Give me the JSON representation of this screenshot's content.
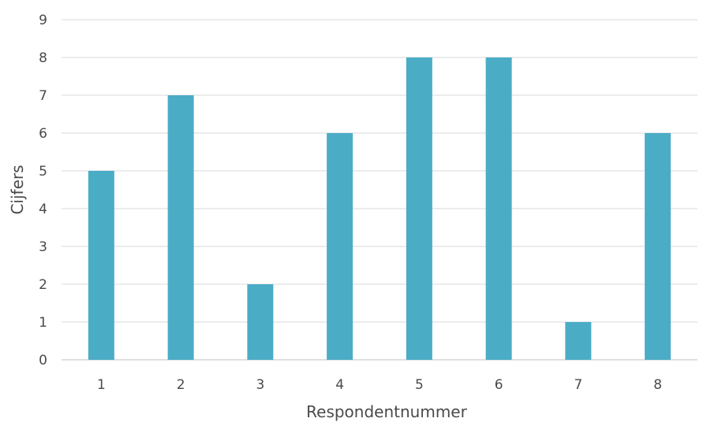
{
  "chart_data": {
    "type": "bar",
    "categories": [
      "1",
      "2",
      "3",
      "4",
      "5",
      "6",
      "7",
      "8"
    ],
    "values": [
      5,
      7,
      2,
      6,
      8,
      8,
      1,
      6
    ],
    "title": "",
    "xlabel": "Respondentnummer",
    "ylabel": "Cijfers",
    "ylim": [
      0,
      9
    ],
    "yticks": [
      0,
      1,
      2,
      3,
      4,
      5,
      6,
      7,
      8,
      9
    ],
    "grid": true,
    "legend": "none",
    "bar_color": "#4BACC6"
  }
}
